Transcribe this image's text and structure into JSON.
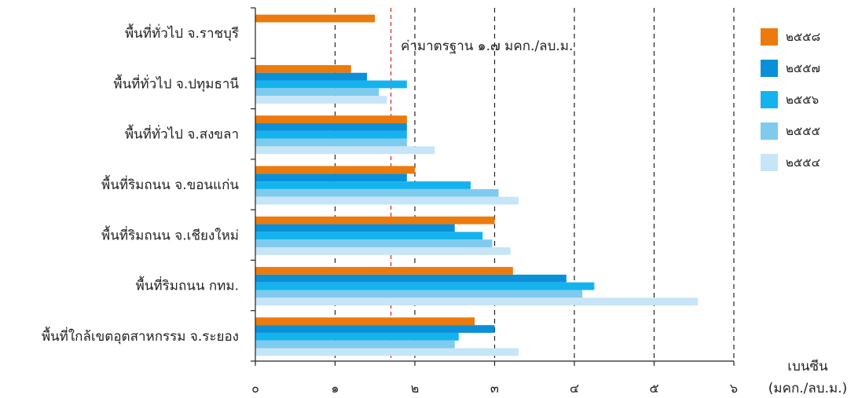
{
  "chart_data": {
    "type": "bar",
    "orientation": "horizontal",
    "categories": [
      "พื้นที่ทั่วไป จ.ราชบุรี",
      "พื้นที่ทั่วไป จ.ปทุมธานี",
      "พื้นที่ทั่วไป จ.สงขลา",
      "พื้นที่ริมถนน จ.ขอนแก่น",
      "พื้นที่ริมถนน จ.เชียงใหม่",
      "พื้นที่ริมถนน กทม.",
      "พื้นที่ใกล้เขตอุตสาหกรรม จ.ระยอง"
    ],
    "series": [
      {
        "name": "๒๕๕๘",
        "color": "#ec7a0c",
        "values": [
          1.5,
          1.2,
          1.9,
          2.0,
          3.0,
          3.23,
          2.75
        ]
      },
      {
        "name": "๒๕๕๗",
        "color": "#0a90d8",
        "values": [
          null,
          1.4,
          1.9,
          1.9,
          2.5,
          3.9,
          3.0
        ]
      },
      {
        "name": "๒๕๕๖",
        "color": "#15b3ee",
        "values": [
          null,
          1.9,
          1.9,
          2.7,
          2.85,
          4.25,
          2.55
        ]
      },
      {
        "name": "๒๕๕๕",
        "color": "#7fcbee",
        "values": [
          null,
          1.55,
          1.9,
          3.05,
          2.97,
          4.1,
          2.5
        ]
      },
      {
        "name": "๒๕๕๔",
        "color": "#c6e5f7",
        "values": [
          null,
          1.65,
          2.25,
          3.3,
          3.2,
          5.55,
          3.3
        ]
      }
    ],
    "xlim": [
      0,
      6
    ],
    "xticks": [
      "๐",
      "๑",
      "๒",
      "๓",
      "๔",
      "๕",
      "๖"
    ],
    "xlabel_line1": "เบนซีน",
    "xlabel_line2": "(มคก./ลบ.ม.)",
    "grid": "vertical dashed",
    "legend_position": "right",
    "reference_line": {
      "value": 1.7,
      "label": "ค่ามาตรฐาน ๑.๗ มคก./ลบ.ม.",
      "color": "#d62020"
    }
  }
}
